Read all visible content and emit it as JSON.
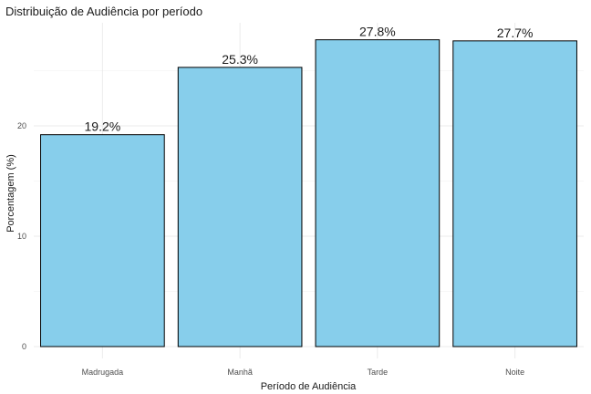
{
  "chart_data": {
    "type": "bar",
    "title": "Distribuição de Audiência por período",
    "xlabel": "Período de Audiência",
    "ylabel": "Porcentagem (%)",
    "categories": [
      "Madrugada",
      "Manhã",
      "Tarde",
      "Noite"
    ],
    "values": [
      19.2,
      25.3,
      27.8,
      27.7
    ],
    "value_labels": [
      "19.2%",
      "25.3%",
      "27.8%",
      "27.7%"
    ],
    "yticks": [
      0,
      10,
      20
    ],
    "ytick_labels": [
      "0",
      "10",
      "20"
    ],
    "ylim": [
      0,
      29.2
    ],
    "grid": true,
    "bar_color": "#87CEEB",
    "bar_outline": "#000000"
  }
}
